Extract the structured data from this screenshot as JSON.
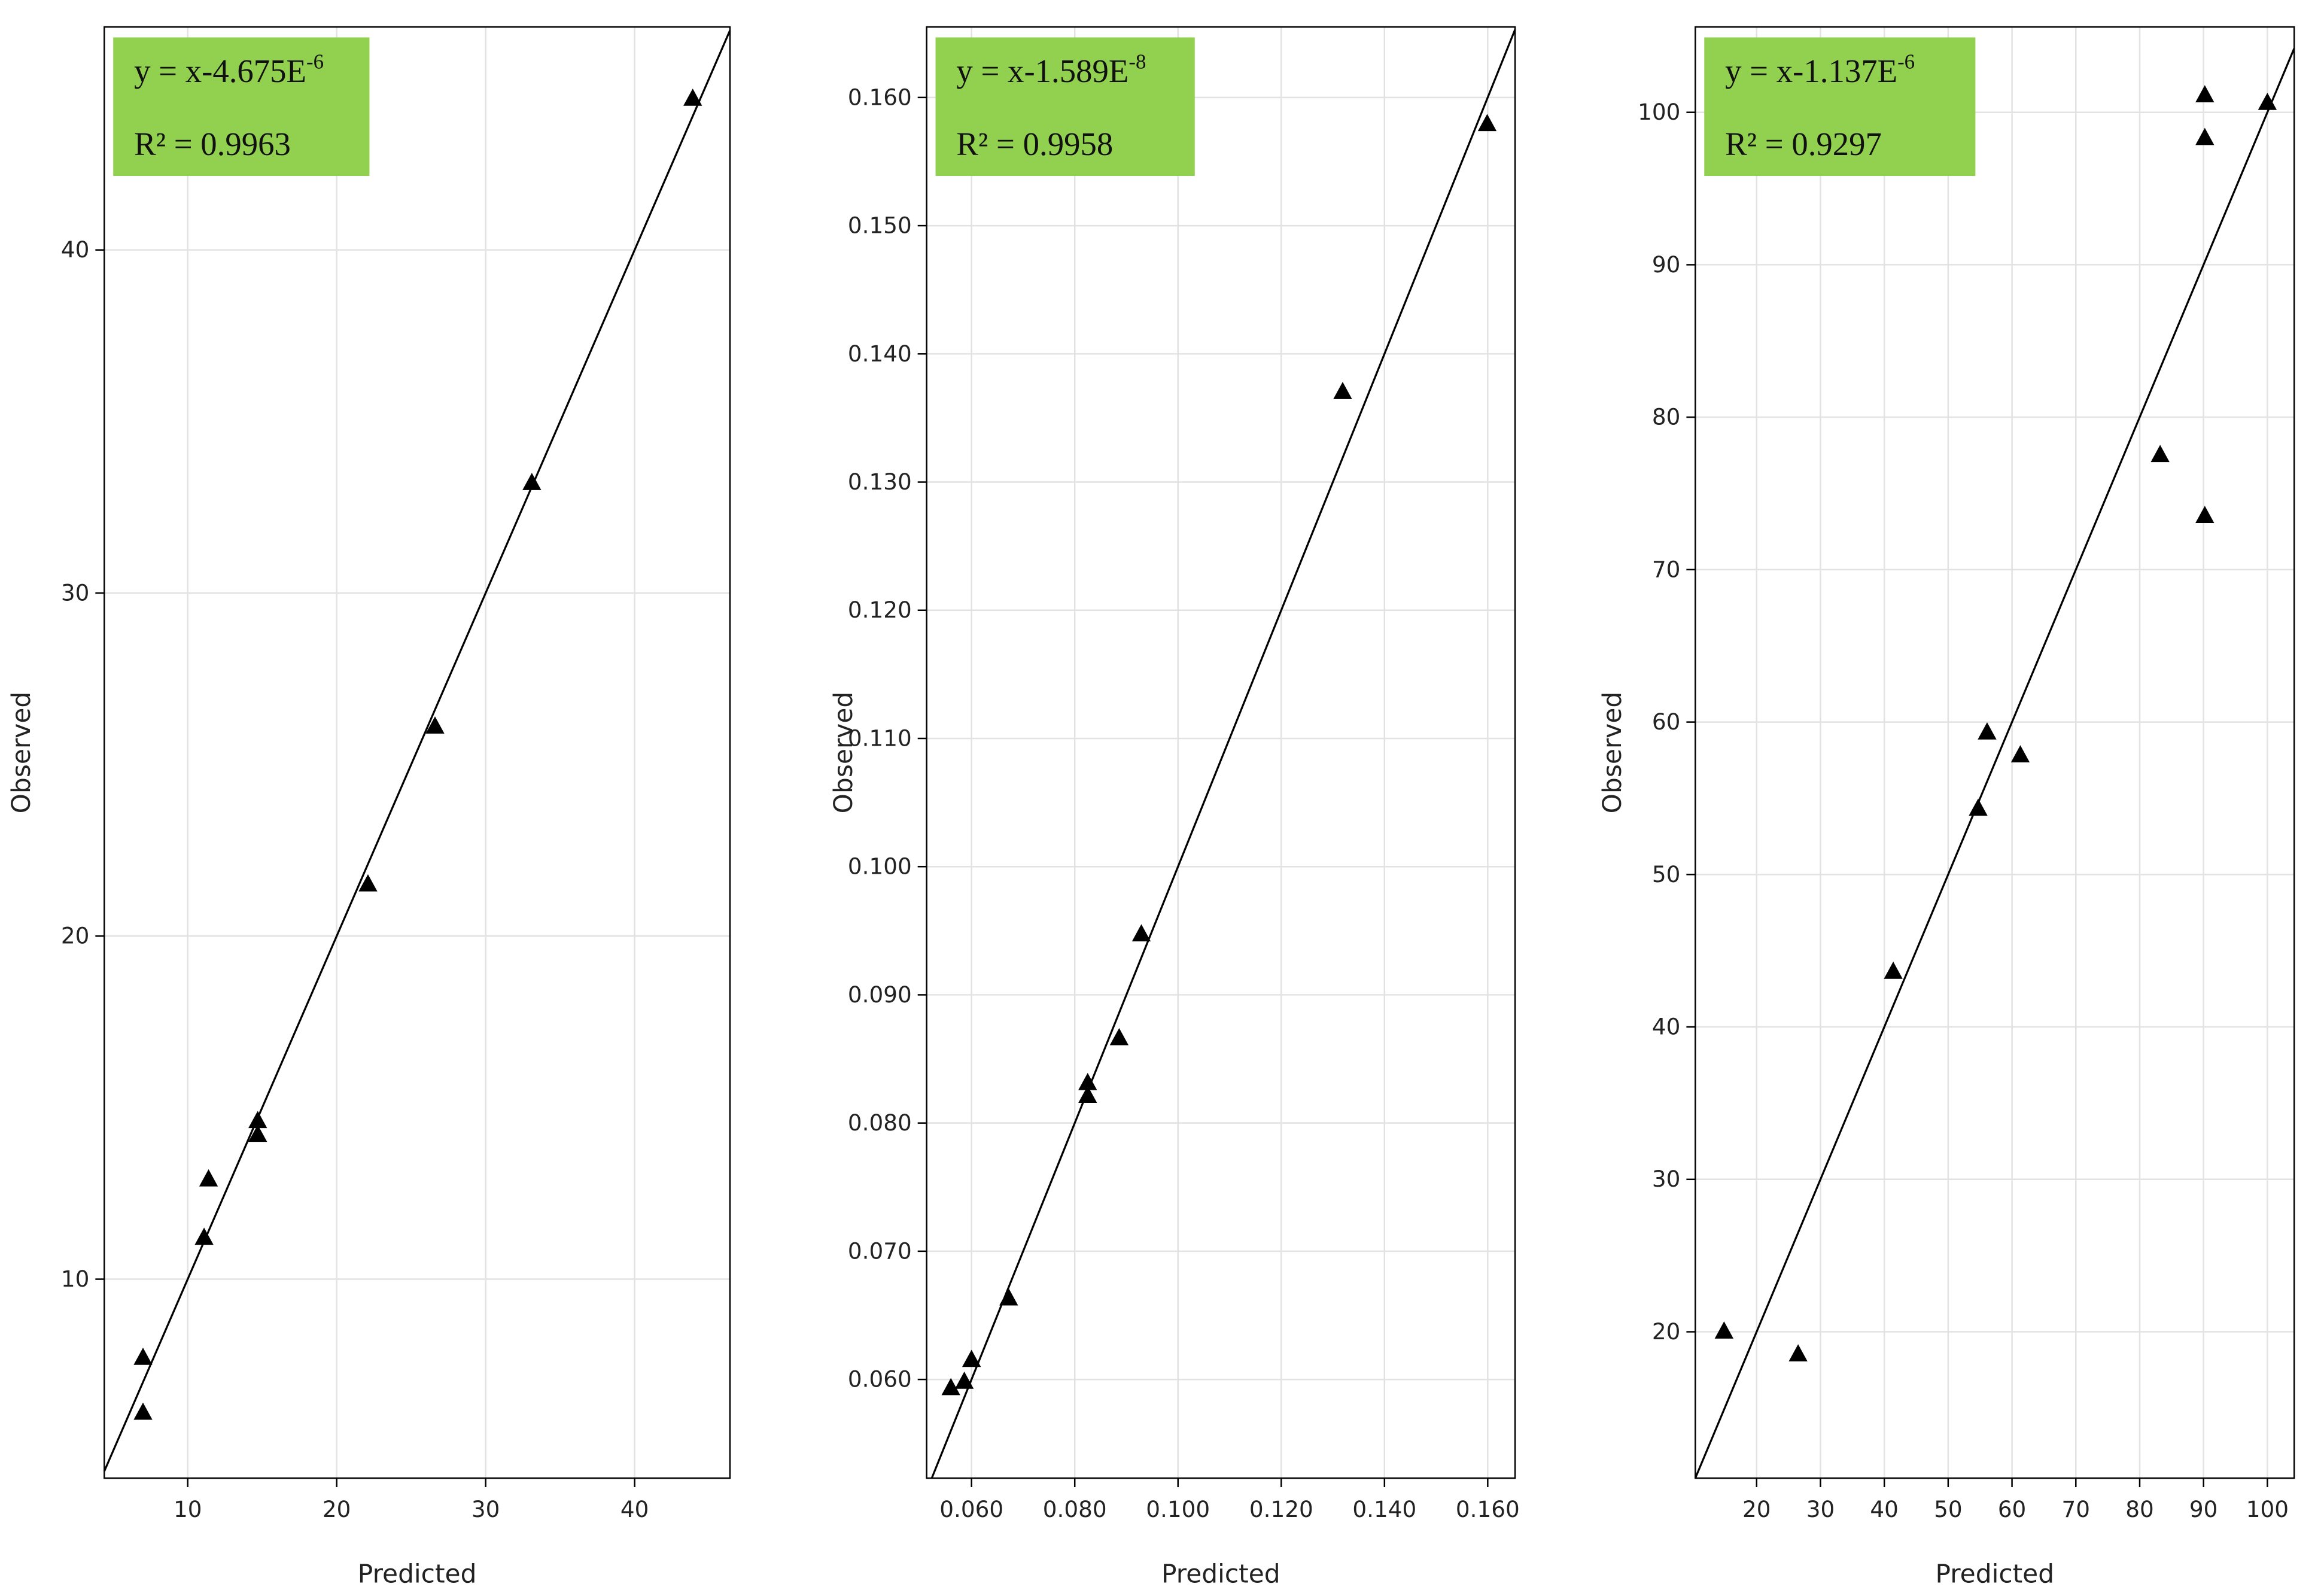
{
  "chart_data": [
    {
      "type": "scatter",
      "xlabel": "Predicted",
      "ylabel": "Observed",
      "color": "#000000",
      "grid": true,
      "annotation": {
        "equation": "y = x-4.675E",
        "exponent": "-6",
        "r2": "R² = 0.9963"
      },
      "x": [
        7.0,
        7.0,
        11.1,
        11.4,
        14.7,
        14.7,
        22.1,
        26.6,
        33.1,
        43.9
      ],
      "values": [
        7.7,
        6.1,
        11.2,
        12.9,
        14.6,
        14.2,
        21.5,
        26.1,
        33.2,
        44.4
      ],
      "xlim": [
        4.4,
        46.4
      ],
      "ylim": [
        4.2,
        46.5
      ],
      "xticks": [
        10,
        20,
        30,
        40
      ],
      "yticks": [
        10,
        20,
        30,
        40
      ]
    },
    {
      "type": "scatter",
      "xlabel": "Predicted",
      "ylabel": "Observed",
      "color": "#000000",
      "grid": true,
      "annotation": {
        "equation": "y = x-1.589E",
        "exponent": "-8",
        "r2": "R² = 0.9958"
      },
      "x": [
        0.056,
        0.0586,
        0.06,
        0.0672,
        0.0825,
        0.0825,
        0.0886,
        0.0929,
        0.1319,
        0.1599
      ],
      "values": [
        0.0593,
        0.0598,
        0.0615,
        0.0663,
        0.0821,
        0.0831,
        0.0866,
        0.0947,
        0.137,
        0.1579
      ],
      "xlim": [
        0.0513,
        0.1653
      ],
      "ylim": [
        0.0523,
        0.1655
      ],
      "xticks": [
        {
          "value": 0.06,
          "label": "0.060"
        },
        {
          "value": 0.08,
          "label": "0.080"
        },
        {
          "value": 0.1,
          "label": "0.100"
        },
        {
          "value": 0.12,
          "label": "0.120"
        },
        {
          "value": 0.14,
          "label": "0.140"
        },
        {
          "value": 0.16,
          "label": "0.160"
        }
      ],
      "yticks": [
        {
          "value": 0.06,
          "label": "0.060"
        },
        {
          "value": 0.07,
          "label": "0.070"
        },
        {
          "value": 0.08,
          "label": "0.080"
        },
        {
          "value": 0.09,
          "label": "0.090"
        },
        {
          "value": 0.1,
          "label": "0.100"
        },
        {
          "value": 0.11,
          "label": "0.110"
        },
        {
          "value": 0.12,
          "label": "0.120"
        },
        {
          "value": 0.13,
          "label": "0.130"
        },
        {
          "value": 0.14,
          "label": "0.140"
        },
        {
          "value": 0.15,
          "label": "0.150"
        },
        {
          "value": 0.16,
          "label": "0.160"
        }
      ]
    },
    {
      "type": "scatter",
      "xlabel": "Predicted",
      "ylabel": "Observed",
      "color": "#000000",
      "grid": true,
      "annotation": {
        "equation": "y = x-1.137E",
        "exponent": "-6",
        "r2": "R² = 0.9297"
      },
      "x": [
        14.9,
        26.5,
        41.4,
        54.7,
        56.1,
        61.3,
        83.2,
        90.2,
        90.2,
        90.2,
        100.0
      ],
      "values": [
        20.0,
        18.5,
        43.6,
        54.3,
        59.3,
        57.8,
        77.5,
        101.1,
        98.3,
        73.5,
        100.6
      ],
      "xlim": [
        10.4,
        104.2
      ],
      "ylim": [
        10.4,
        105.6
      ],
      "xticks": [
        20,
        30,
        40,
        50,
        60,
        70,
        80,
        90,
        100
      ],
      "yticks": [
        20,
        30,
        40,
        50,
        60,
        70,
        80,
        90,
        100
      ]
    }
  ]
}
